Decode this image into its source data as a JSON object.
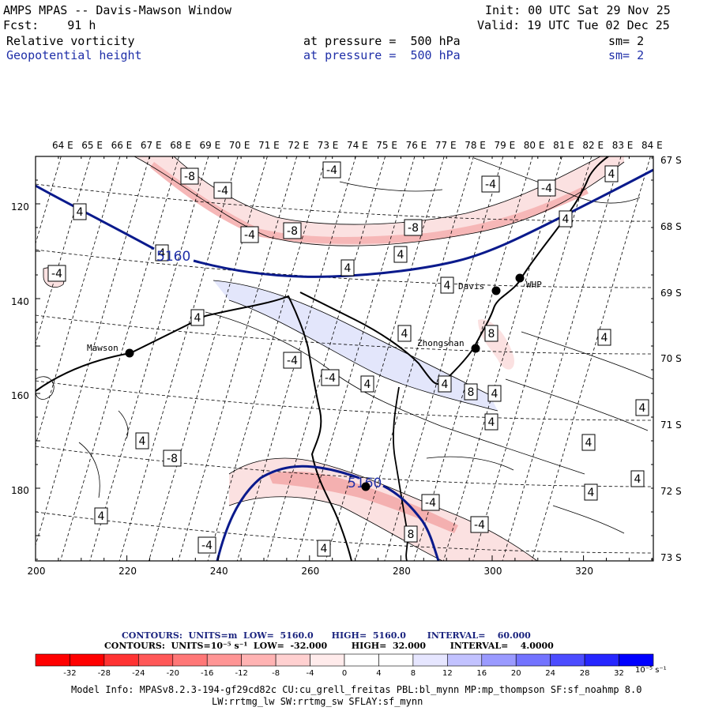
{
  "header": {
    "title": "AMPS MPAS -- Davis-Mawson Window",
    "init": "Init: 00 UTC Sat 29 Nov 25",
    "fcst": "Fcst:    91 h",
    "valid": "Valid: 19 UTC Tue 02 Dec 25",
    "fields": [
      {
        "name": "Relative vorticity",
        "level": "at pressure =  500 hPa",
        "sm": "sm= 2"
      },
      {
        "name": "Geopotential height",
        "level": "at pressure =  500 hPa",
        "sm": "sm= 2"
      }
    ]
  },
  "map": {
    "lon_labels": [
      "64 E",
      "65 E",
      "66 E",
      "67 E",
      "68 E",
      "69 E",
      "70 E",
      "71 E",
      "72 E",
      "73 E",
      "74 E",
      "75 E",
      "76 E",
      "77 E",
      "78 E",
      "79 E",
      "80 E",
      "81 E",
      "82 E",
      "83 E",
      "84 E"
    ],
    "lat_labels": [
      "67 S",
      "68 S",
      "69 S",
      "70 S",
      "71 S",
      "72 S",
      "73 S"
    ],
    "x_ticks": [
      "200",
      "220",
      "240",
      "260",
      "280",
      "300",
      "320"
    ],
    "y_ticks": [
      "120",
      "140",
      "160",
      "180"
    ],
    "stations": [
      {
        "name": "Mawson"
      },
      {
        "name": "Davis"
      },
      {
        "name": "WHP"
      },
      {
        "name": "Zhongshan"
      }
    ],
    "height_labels": [
      "5160",
      "5160"
    ],
    "vort_labels": [
      "-8",
      "-4",
      "-4",
      "4",
      "-4",
      "-4",
      "-8",
      "-8",
      "4",
      "-4",
      "4",
      "-4",
      "4",
      "4",
      "4",
      "4",
      "4",
      "-4",
      "-4",
      "4",
      "4",
      "8",
      "4",
      "8",
      "4",
      "4",
      "4",
      "4",
      "4",
      "4",
      "-8",
      "4",
      "-4",
      "-4",
      "-4",
      "4",
      "8",
      "4",
      "4"
    ]
  },
  "colors": {
    "height_contour": "#0a1a8c",
    "coast": "#000000",
    "neg_fill_light": "#fbe3e3",
    "neg_fill_mid": "#f4b6b6",
    "pos_fill_light": "#e3e6fb"
  },
  "contour_info": {
    "line1": "CONTOURS:  UNITS=m  LOW=  5160.0      HIGH=  5160.0       INTERVAL=    60.000",
    "line2": "CONTOURS:  UNITS=10⁻⁵ s⁻¹  LOW=  -32.000        HIGH=  32.000        INTERVAL=    4.0000"
  },
  "colorbar": {
    "labels": [
      "-32",
      "-28",
      "-24",
      "-20",
      "-16",
      "-12",
      "-8",
      "-4",
      "0",
      "4",
      "8",
      "12",
      "16",
      "20",
      "24",
      "28",
      "32"
    ],
    "unit": "10⁻⁵ s⁻¹",
    "colors": [
      "#ff0000",
      "#ff3333",
      "#ff5858",
      "#ff7777",
      "#ff9595",
      "#ffb3b3",
      "#ffd0d0",
      "#ffebeb",
      "#ffffff",
      "#ffffff",
      "#e6e6ff",
      "#c2c2ff",
      "#9a9aff",
      "#7373ff",
      "#4c4cff",
      "#2626ff",
      "#0000ff"
    ]
  },
  "model_info": {
    "line1": "Model Info: MPASv8.2.3-194-gf29cd82c CU:cu_grell_freitas PBL:bl_mynn MP:mp_thompson SF:sf_noahmp 8.0",
    "line2": "LW:rrtmg_lw SW:rrtmg_sw SFLAY:sf_mynn"
  }
}
